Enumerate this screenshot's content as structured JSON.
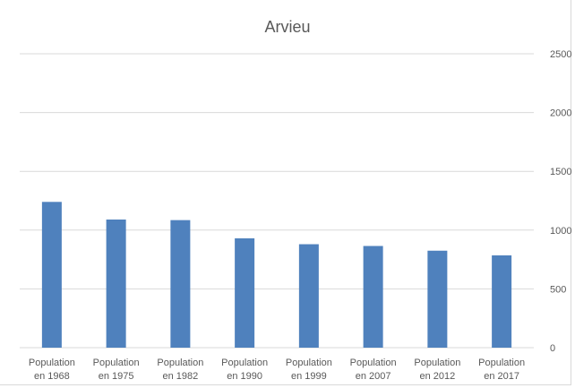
{
  "chart_data": {
    "type": "bar",
    "title": "Arvieu",
    "categories": [
      [
        "Population",
        "en 1968"
      ],
      [
        "Population",
        "en 1975"
      ],
      [
        "Population",
        "en 1982"
      ],
      [
        "Population",
        "en 1990"
      ],
      [
        "Population",
        "en 1999"
      ],
      [
        "Population",
        "en 2007"
      ],
      [
        "Population",
        "en 2012"
      ],
      [
        "Population",
        "en 2017"
      ]
    ],
    "values": [
      1240,
      1090,
      1085,
      930,
      880,
      865,
      825,
      785
    ],
    "ylim": [
      0,
      2500
    ],
    "yticks": [
      "0",
      "500",
      "1000",
      "1500",
      "2000",
      "2500"
    ],
    "grid": true,
    "y_axis_side": "right",
    "bar_color": "#4f81bd",
    "grid_color": "#d9d9d9"
  }
}
